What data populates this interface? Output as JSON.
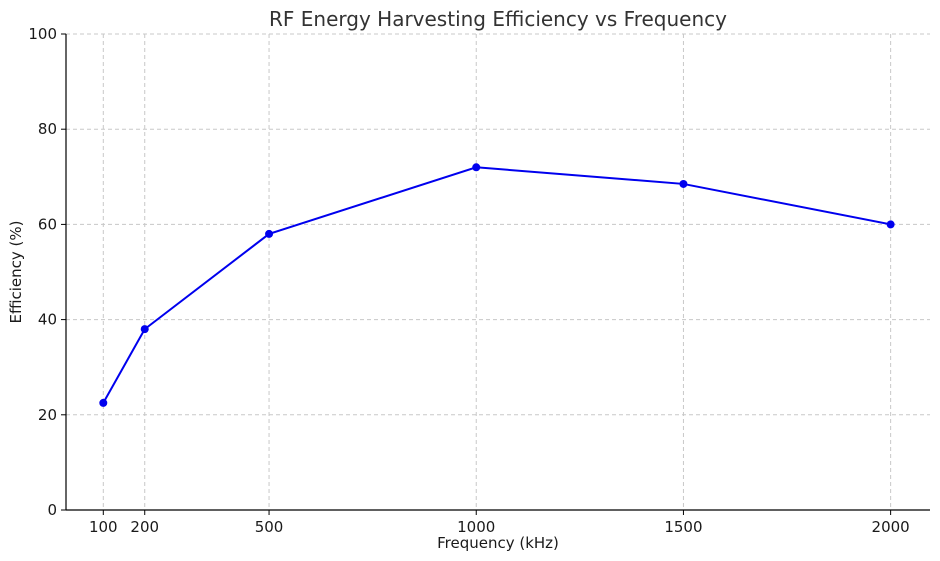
{
  "chart_data": {
    "type": "line",
    "title": "RF Energy Harvesting Efficiency vs Frequency",
    "xlabel": "Frequency (kHz)",
    "ylabel": "Efficiency (%)",
    "x": [
      100,
      200,
      500,
      1000,
      1500,
      2000
    ],
    "series": [
      {
        "values": [
          22.5,
          38,
          58,
          72,
          68.5,
          60
        ],
        "color": "#0000ee"
      }
    ],
    "xlim": [
      10,
      2095
    ],
    "ylim": [
      0,
      100
    ],
    "xticks": [
      100,
      200,
      500,
      1000,
      1500,
      2000
    ],
    "yticks": [
      0,
      20,
      40,
      60,
      80,
      100
    ],
    "grid": true,
    "legend": "none"
  }
}
